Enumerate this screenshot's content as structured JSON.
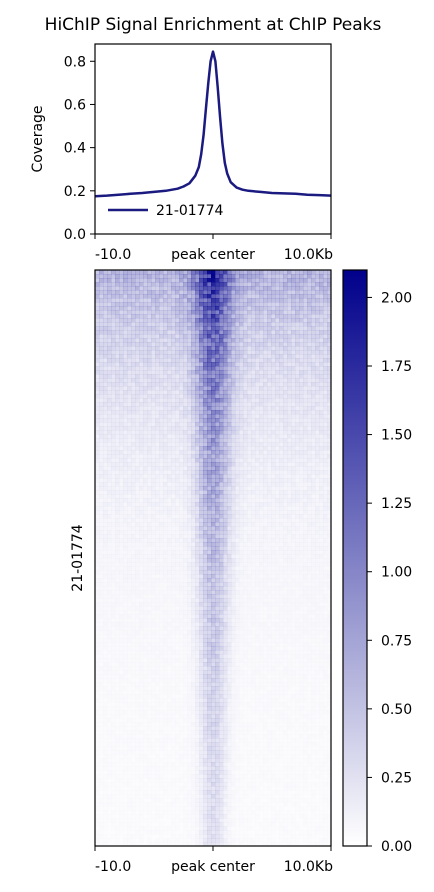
{
  "chart_data": [
    {
      "type": "line",
      "title": "HiChIP Signal Enrichment at ChIP Peaks",
      "ylabel": "Coverage",
      "ylim": [
        0.0,
        0.88
      ],
      "yticks": [
        "0.0",
        "0.2",
        "0.4",
        "0.6",
        "0.8"
      ],
      "xlim": [
        -10.0,
        10.0
      ],
      "xticks": [
        "-10.0",
        "peak center",
        "10.0Kb"
      ],
      "legend_position": "lower-left",
      "series": [
        {
          "name": "21-01774",
          "color": "#1a1a80",
          "x": [
            -10,
            -9,
            -8,
            -7,
            -6,
            -5,
            -4,
            -3,
            -2.5,
            -2,
            -1.5,
            -1.2,
            -1,
            -0.8,
            -0.6,
            -0.4,
            -0.2,
            0,
            0.2,
            0.4,
            0.6,
            0.8,
            1,
            1.2,
            1.5,
            2,
            2.5,
            3,
            4,
            5,
            6,
            7,
            8,
            9,
            10
          ],
          "y": [
            0.175,
            0.178,
            0.182,
            0.186,
            0.19,
            0.195,
            0.2,
            0.21,
            0.22,
            0.235,
            0.27,
            0.31,
            0.37,
            0.46,
            0.58,
            0.7,
            0.8,
            0.845,
            0.8,
            0.68,
            0.54,
            0.42,
            0.33,
            0.28,
            0.24,
            0.215,
            0.205,
            0.2,
            0.195,
            0.19,
            0.188,
            0.186,
            0.182,
            0.18,
            0.178
          ]
        }
      ]
    },
    {
      "type": "heatmap",
      "ylabel": "21-01774",
      "xticks": [
        "-10.0",
        "peak center",
        "10.0Kb"
      ],
      "colorbar": {
        "min": 0.0,
        "max": 2.1,
        "ticks": [
          "0.00",
          "0.25",
          "0.50",
          "0.75",
          "1.00",
          "1.25",
          "1.50",
          "1.75",
          "2.00"
        ],
        "color_low": "#ffffff",
        "color_high": "#00008b"
      }
    }
  ]
}
